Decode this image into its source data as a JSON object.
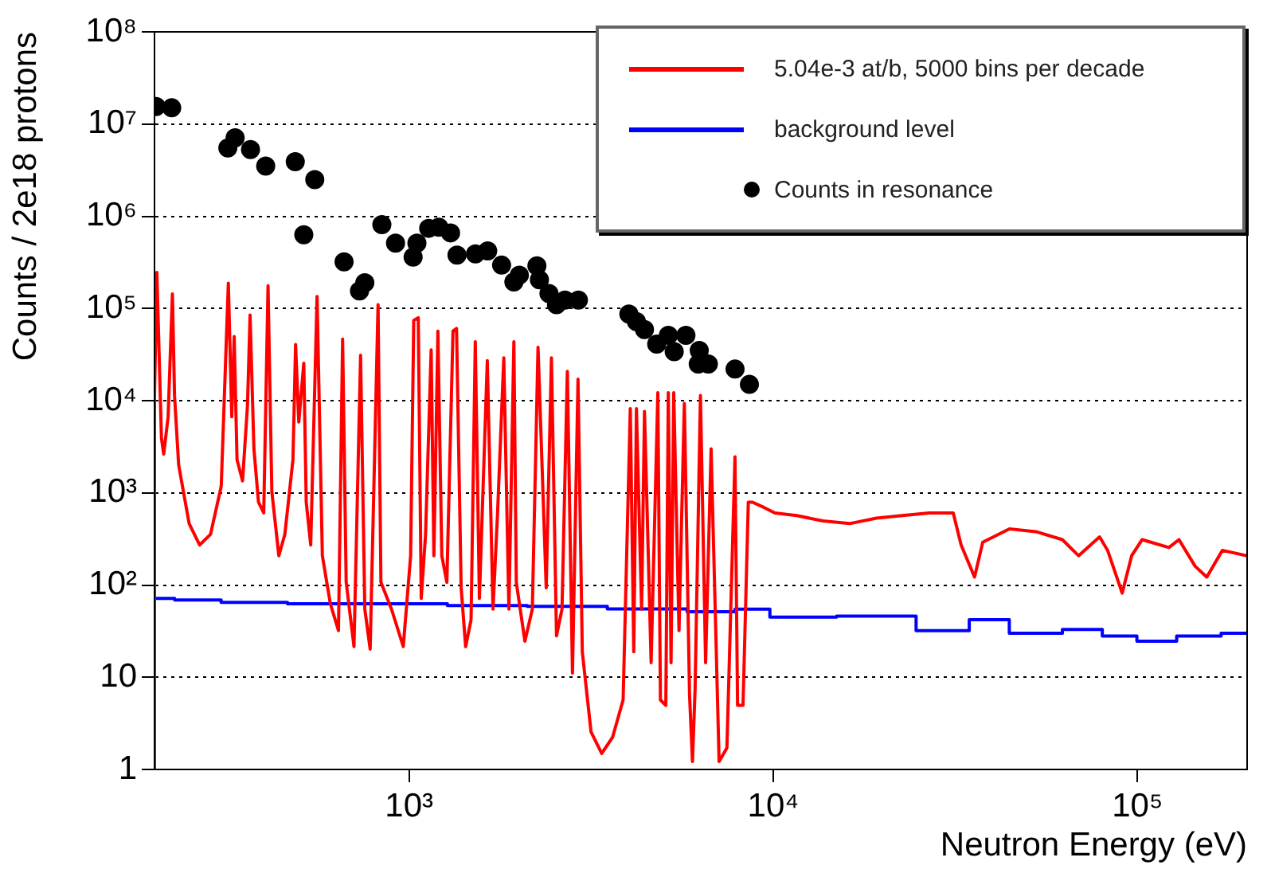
{
  "chart_data": {
    "type": "line",
    "xlabel": "Neutron Energy (eV)",
    "ylabel": "Counts / 2e18 protons",
    "log": "xy",
    "xlim": [
      200,
      200000
    ],
    "ylim": [
      1,
      100000000
    ],
    "xticks": [
      {
        "value": 1000,
        "label": "10³"
      },
      {
        "value": 10000,
        "label": "10⁴"
      },
      {
        "value": 100000,
        "label": "10⁵"
      }
    ],
    "yticks": [
      1,
      10,
      {
        "value": 100,
        "label": "10²"
      },
      {
        "value": 1000,
        "label": "10³"
      },
      {
        "value": 10000,
        "label": "10⁴"
      },
      {
        "value": 100000,
        "label": "10⁵"
      },
      {
        "value": 1000000,
        "label": "10⁶"
      },
      {
        "value": 10000000,
        "label": "10⁷"
      },
      {
        "value": 100000000,
        "label": "10⁸"
      }
    ],
    "grid": "y",
    "legend": "top right",
    "series": [
      {
        "name": "5.04e-3 at/b, 5000 bins per decade",
        "color": "#ff0000",
        "type": "line",
        "marker": "none",
        "x": [
          200,
          200,
          203,
          209,
          212,
          218,
          224,
          227,
          233,
          249,
          266,
          285,
          305,
          313,
          319,
          326,
          331,
          337,
          349,
          360,
          366,
          375,
          386,
          399,
          410,
          420,
          439,
          456,
          480,
          488,
          498,
          514,
          522,
          537,
          559,
          578,
          608,
          640,
          657,
          672,
          706,
          736,
          756,
          782,
          822,
          837,
          895,
          964,
          1010,
          1030,
          1060,
          1080,
          1110,
          1150,
          1170,
          1200,
          1230,
          1270,
          1320,
          1350,
          1390,
          1430,
          1480,
          1520,
          1560,
          1640,
          1700,
          1750,
          1820,
          1880,
          1940,
          1970,
          2080,
          2180,
          2260,
          2380,
          2460,
          2540,
          2630,
          2720,
          2810,
          2910,
          2990,
          3160,
          3380,
          3620,
          3870,
          4050,
          4140,
          4210,
          4350,
          4430,
          4620,
          4820,
          4900,
          5070,
          5150,
          5240,
          5330,
          5510,
          5700,
          5890,
          6000,
          6100,
          6310,
          6520,
          6750,
          7100,
          7460,
          7850,
          7980,
          8260,
          8540,
          8770,
          9440,
          10100,
          11600,
          13700,
          16200,
          19200,
          22600,
          26800,
          31200,
          32800,
          35700,
          37600,
          44500,
          52600,
          62200,
          68900,
          78700,
          82800,
          90800,
          96400,
          103000,
          122000,
          130000,
          144000,
          155000,
          171000,
          200000
        ],
        "values": [
          1,
          11400,
          246000,
          3930,
          2630,
          6700,
          144000,
          11400,
          2010,
          464,
          272,
          355,
          1180,
          22300,
          188000,
          6700,
          49600,
          2300,
          1350,
          8750,
          84700,
          3000,
          792,
          606,
          176000,
          1030,
          208,
          355,
          2300,
          40600,
          5860,
          25500,
          792,
          272,
          135000,
          208,
          62.7,
          32.1,
          46500,
          107,
          21.5,
          31100,
          54.8,
          20.2,
          110000,
          107,
          54.8,
          21.5,
          208,
          74100,
          79200,
          71.6,
          355,
          35600,
          208,
          56800,
          208,
          107,
          56800,
          60700,
          93.5,
          21.5,
          42,
          43500,
          71.6,
          27200,
          54.8,
          606,
          29100,
          54.8,
          43500,
          107,
          24.6,
          54.8,
          38000,
          93.5,
          29100,
          28.1,
          54.8,
          20800,
          11.1,
          17100,
          18.9,
          2.55,
          1.49,
          2.23,
          5.67,
          8180,
          18.9,
          8180,
          54.8,
          7660,
          14.4,
          12200,
          5.67,
          4.96,
          12200,
          14.4,
          12200,
          32.1,
          9350,
          6.48,
          1.22,
          7.41,
          11400,
          14.4,
          3000,
          1.22,
          1.71,
          2460,
          4.96,
          4.96,
          792,
          792,
          693,
          606,
          567,
          496,
          464,
          531,
          567,
          606,
          606,
          272,
          122,
          291,
          406,
          380,
          311,
          208,
          333,
          238,
          81.8,
          208,
          311,
          255,
          311,
          160,
          122,
          238,
          208
        ]
      },
      {
        "name": "background level",
        "color": "#0000ff",
        "type": "step",
        "marker": "none",
        "x": [
          200,
          258,
          360,
          597,
          990,
          1640,
          2720,
          4510,
          7460,
          8260,
          11600,
          19200,
          31700,
          37600,
          52600,
          73600,
          87100,
          114000,
          144000,
          200000
        ],
        "values": [
          71.6,
          69,
          65,
          62.7,
          62.7,
          60,
          58.7,
          55,
          51.3,
          54.8,
          44.9,
          46,
          32,
          42,
          30,
          33,
          28,
          24.6,
          28,
          30
        ]
      },
      {
        "name": "Counts in resonance",
        "color": "#000000",
        "type": "scatter",
        "marker": "circle",
        "x": [
          202,
          223,
          318,
          333,
          367,
          404,
          487,
          551,
          514,
          663,
          731,
          756,
          842,
          918,
          1026,
          1051,
          1132,
          1207,
          1300,
          1354,
          1522,
          1644,
          1795,
          1940,
          2008,
          2244,
          2280,
          2422,
          2540,
          2680,
          2917,
          4014,
          4210,
          4430,
          4786,
          5152,
          5346,
          5757,
          6263,
          6223,
          6633,
          7854,
          8600
        ],
        "values": [
          15500000,
          15000000,
          5500000,
          7100000,
          5300000,
          3500000,
          3900000,
          2500000,
          630000,
          320000,
          155000,
          190000,
          810000,
          510000,
          360000,
          510000,
          740000,
          760000,
          660000,
          380000,
          390000,
          420000,
          295000,
          194000,
          230000,
          290000,
          205000,
          145000,
          110000,
          123000,
          123000,
          87000,
          72000,
          59000,
          41000,
          51000,
          34000,
          51000,
          35000,
          25000,
          25000,
          22000,
          15000
        ]
      }
    ]
  }
}
